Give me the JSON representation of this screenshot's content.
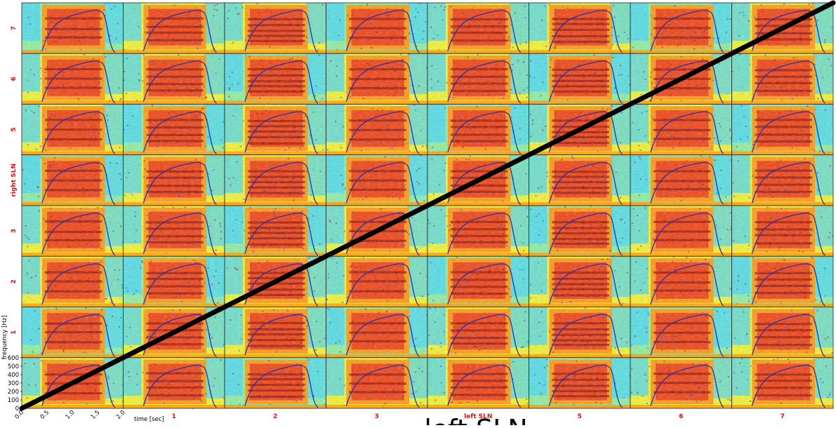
{
  "chart_data": {
    "type": "heatmap",
    "description_grid": "8x8 grid of spectrograms",
    "row_labels": [
      "7",
      "6",
      "5",
      "right SLN",
      "3",
      "2",
      "1",
      ""
    ],
    "col_labels": [
      "",
      "1",
      "2",
      "3",
      "left SLN",
      "5",
      "6",
      "7"
    ],
    "xlabel": "time [sec]",
    "ylabel": "frequency [Hz]",
    "x_ticks": [
      "0.0",
      "0.5",
      "1.0",
      "1.5",
      "2.0"
    ],
    "y_ticks": [
      "0",
      "100",
      "200",
      "300",
      "400",
      "500",
      "600"
    ],
    "xlim": [
      0,
      2.0
    ],
    "ylim": [
      0,
      600
    ],
    "overlay_title": "left SLN",
    "overlay_line": {
      "from": [
        0,
        0
      ],
      "to": [
        1,
        1
      ],
      "color": "#000000"
    },
    "colormap": [
      "#0a3cff",
      "#3fd8ff",
      "#8ef0a0",
      "#f2f530",
      "#ff9a10",
      "#f03010",
      "#8c0a04"
    ],
    "contour_color": "#3030a0",
    "label_color": "#e01010"
  }
}
